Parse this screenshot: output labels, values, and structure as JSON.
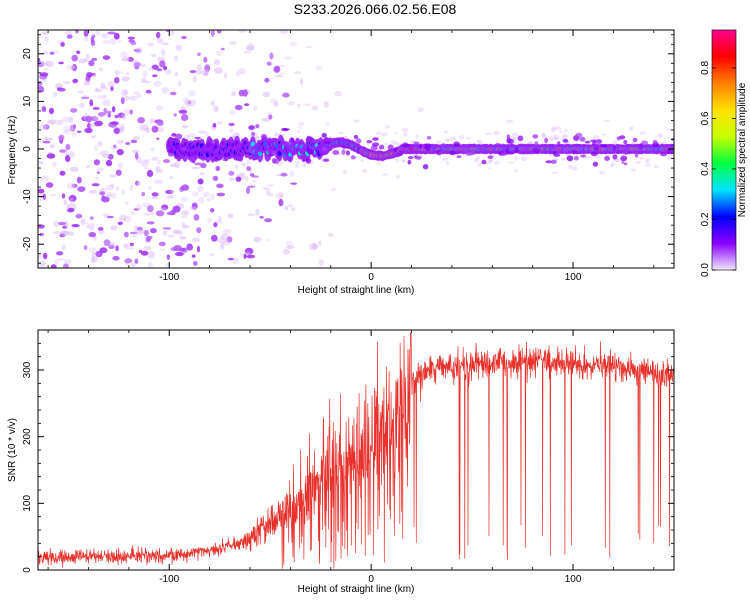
{
  "title": "S233.2026.066.02.56.E08",
  "colors": {
    "line": "#e8312c",
    "axis": "#000000",
    "background": "#ffffff"
  },
  "chart_data": [
    {
      "type": "heatmap",
      "name": "spectrogram",
      "xlabel": "Height of straight line (km)",
      "ylabel": "Frequency (Hz)",
      "xlim": [
        -165,
        150
      ],
      "ylim": [
        -25,
        25
      ],
      "xticks": [
        -100,
        0,
        100
      ],
      "yticks": [
        -20,
        -10,
        0,
        10,
        20
      ],
      "colorbar": {
        "label": "Normalized spectral amplitude",
        "range": [
          0,
          0.95
        ],
        "ticks": [
          0.0,
          0.2,
          0.4,
          0.6,
          0.8
        ],
        "tick_labels": [
          "0.0",
          "0.2",
          "0.4",
          "0.6",
          "0.8"
        ],
        "colormap": [
          "#f2e8fb",
          "#8a00ff",
          "#0000ff",
          "#00e5ff",
          "#00ff40",
          "#c8ff00",
          "#ffe000",
          "#ff8000",
          "#ff0000",
          "#ff0090"
        ]
      },
      "features": {
        "noise_region_x": [
          -165,
          -60
        ],
        "carrier_start_x": -100,
        "carrier_freq_hz": 0,
        "peak_amplitude_x": [
          -5,
          25
        ]
      }
    },
    {
      "type": "line",
      "name": "snr",
      "xlabel": "Height of straight line (km)",
      "ylabel": "SNR (10 * v/v)",
      "xlim": [
        -165,
        150
      ],
      "ylim": [
        0,
        360
      ],
      "xticks": [
        -100,
        0,
        100
      ],
      "yticks": [
        0,
        100,
        200,
        300
      ],
      "series": [
        {
          "name": "SNR",
          "x": [
            -165,
            -140,
            -120,
            -100,
            -80,
            -60,
            -50,
            -40,
            -30,
            -20,
            -10,
            0,
            5,
            10,
            15,
            20,
            30,
            40,
            60,
            80,
            100,
            120,
            150
          ],
          "values": [
            18,
            20,
            20,
            21,
            30,
            45,
            70,
            90,
            115,
            140,
            160,
            175,
            190,
            210,
            240,
            280,
            300,
            305,
            310,
            315,
            310,
            305,
            290
          ]
        }
      ]
    }
  ]
}
